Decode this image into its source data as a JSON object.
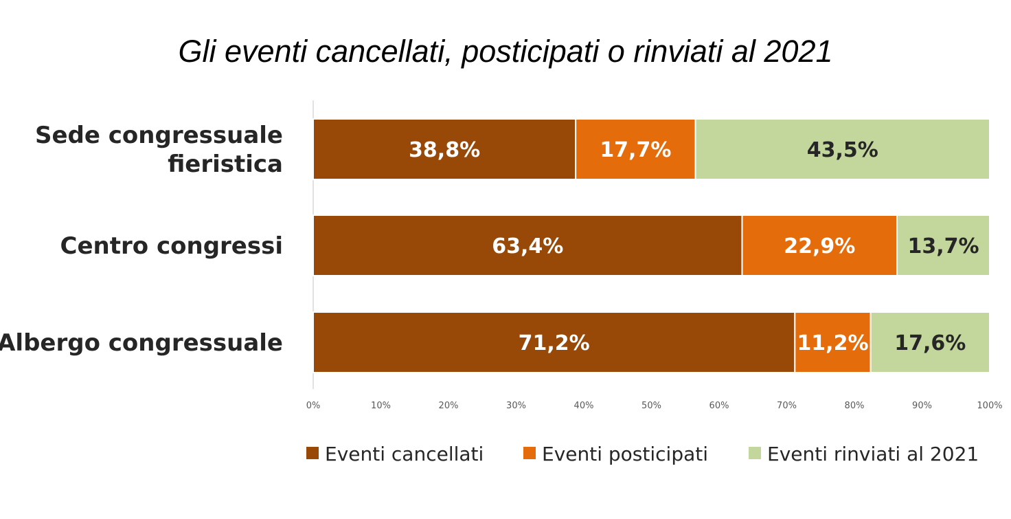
{
  "chart_data": {
    "type": "bar",
    "orientation": "horizontal",
    "stacked": true,
    "title": "Gli eventi cancellati, posticipati o rinviati al 2021",
    "categories": [
      [
        "Sede congressuale",
        "fieristica"
      ],
      [
        "Centro congressi"
      ],
      [
        "Albergo congressuale"
      ]
    ],
    "series": [
      {
        "name": "Eventi cancellati",
        "color": "#984807",
        "label_color": "#ffffff",
        "values": [
          38.8,
          63.4,
          71.2
        ],
        "labels": [
          "38,8%",
          "63,4%",
          "71,2%"
        ]
      },
      {
        "name": "Eventi posticipati",
        "color": "#E46C0A",
        "label_color": "#ffffff",
        "values": [
          17.7,
          22.9,
          11.2
        ],
        "labels": [
          "17,7%",
          "22,9%",
          "11,2%"
        ]
      },
      {
        "name": "Eventi rinviati al 2021",
        "color": "#C3D69B",
        "label_color": "#262626",
        "values": [
          43.5,
          13.7,
          17.6
        ],
        "labels": [
          "43,5%",
          "13,7%",
          "17,6%"
        ]
      }
    ],
    "x_ticks": [
      "0%",
      "10%",
      "20%",
      "30%",
      "40%",
      "50%",
      "60%",
      "70%",
      "80%",
      "90%",
      "100%"
    ],
    "xlim": [
      0,
      100
    ],
    "xlabel": "",
    "ylabel": "",
    "grid": false,
    "legend_position": "bottom"
  }
}
